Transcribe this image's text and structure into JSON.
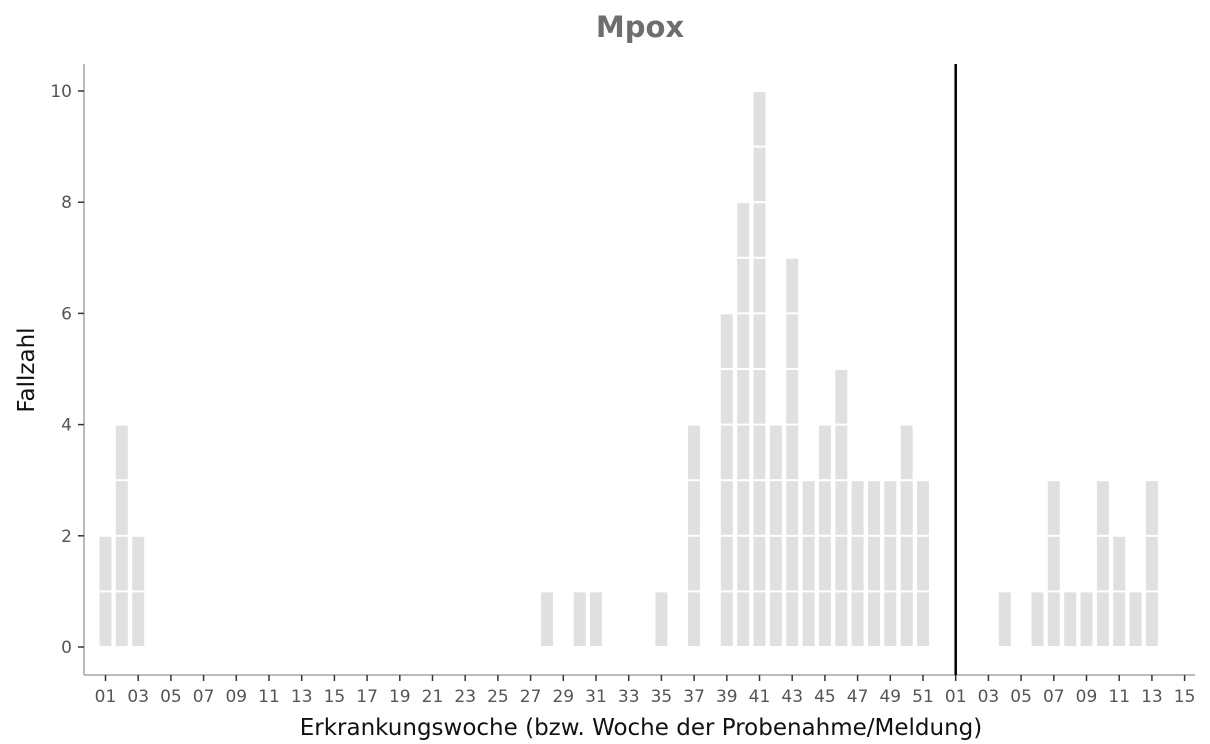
{
  "chart_data": {
    "type": "bar",
    "title": "Mpox",
    "xlabel": "Erkrankungswoche (bzw. Woche der Probenahme/Meldung)",
    "ylabel": "Fallzahl",
    "ylim": [
      0,
      10
    ],
    "yticks": [
      "0",
      "2",
      "4",
      "6",
      "8",
      "10"
    ],
    "grid": false,
    "bar_color": "#e0e0e0",
    "divider_color": "#000000",
    "year_boundary_after_week": "52",
    "weeks": [
      "01",
      "02",
      "03",
      "04",
      "05",
      "06",
      "07",
      "08",
      "09",
      "10",
      "11",
      "12",
      "13",
      "14",
      "15",
      "16",
      "17",
      "18",
      "19",
      "20",
      "21",
      "22",
      "23",
      "24",
      "25",
      "26",
      "27",
      "28",
      "29",
      "30",
      "31",
      "32",
      "33",
      "34",
      "35",
      "36",
      "37",
      "38",
      "39",
      "40",
      "41",
      "42",
      "43",
      "44",
      "45",
      "46",
      "47",
      "48",
      "49",
      "50",
      "51",
      "52",
      "01",
      "02",
      "03",
      "04",
      "05",
      "06",
      "07",
      "08",
      "09",
      "10",
      "11",
      "12",
      "13",
      "14",
      "15"
    ],
    "values": [
      2,
      4,
      2,
      0,
      0,
      0,
      0,
      0,
      0,
      0,
      0,
      0,
      0,
      0,
      0,
      0,
      0,
      0,
      0,
      0,
      0,
      0,
      0,
      0,
      0,
      0,
      0,
      1,
      0,
      1,
      1,
      0,
      0,
      0,
      1,
      0,
      4,
      0,
      6,
      8,
      10,
      4,
      7,
      3,
      4,
      5,
      3,
      3,
      3,
      4,
      3,
      0,
      0,
      0,
      0,
      1,
      0,
      1,
      3,
      1,
      1,
      3,
      2,
      1,
      3,
      0,
      0
    ],
    "xtick_labels": [
      "01",
      "03",
      "05",
      "07",
      "09",
      "11",
      "13",
      "15",
      "17",
      "19",
      "21",
      "23",
      "25",
      "27",
      "29",
      "31",
      "33",
      "35",
      "37",
      "39",
      "41",
      "43",
      "45",
      "47",
      "49",
      "51",
      "01",
      "03",
      "05",
      "07",
      "09",
      "11",
      "13",
      "15"
    ]
  }
}
